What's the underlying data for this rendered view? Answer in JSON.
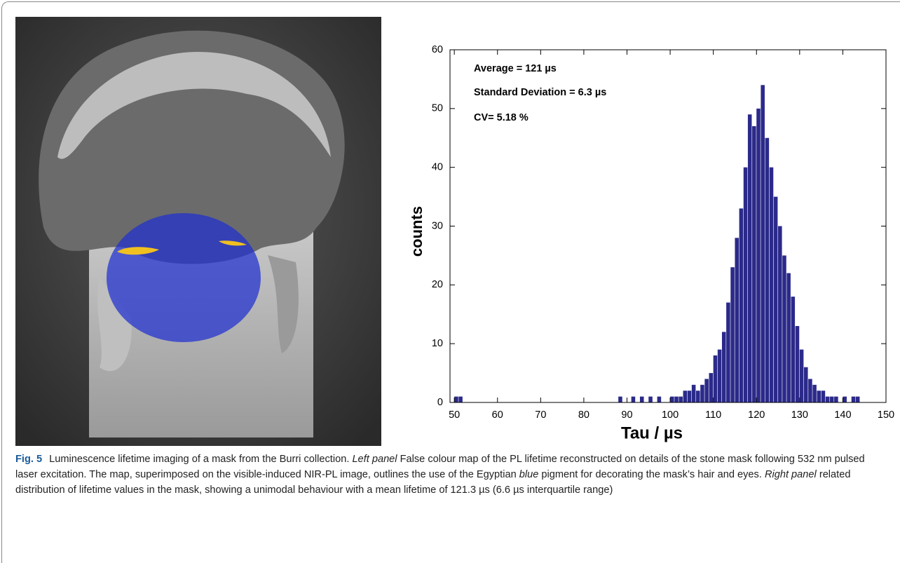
{
  "chart_data": {
    "type": "histogram",
    "annotations": [
      "Average = 121 µs",
      "Standard Deviation  = 6.3 µs",
      "CV= 5.18 %"
    ],
    "x_label": "Tau / µs",
    "y_label": "counts",
    "color": "#2b2a8a",
    "bins": [
      50,
      51,
      52,
      53,
      54,
      55,
      56,
      57,
      58,
      59,
      60,
      61,
      62,
      63,
      64,
      65,
      66,
      67,
      68,
      69,
      70,
      71,
      72,
      73,
      74,
      75,
      76,
      77,
      78,
      79,
      80,
      81,
      82,
      83,
      84,
      85,
      86,
      87,
      88,
      89,
      90,
      91,
      92,
      93,
      94,
      95,
      96,
      97,
      98,
      99,
      100,
      101,
      102,
      103,
      104,
      105,
      106,
      107,
      108,
      109,
      110,
      111,
      112,
      113,
      114,
      115,
      116,
      117,
      118,
      119,
      120,
      121,
      122,
      123,
      124,
      125,
      126,
      127,
      128,
      129,
      130,
      131,
      132,
      133,
      134,
      135,
      136,
      137,
      138,
      139,
      140,
      141,
      142,
      143,
      144
    ],
    "counts": [
      1,
      1,
      0,
      0,
      0,
      0,
      0,
      0,
      0,
      0,
      0,
      0,
      0,
      0,
      0,
      0,
      0,
      0,
      0,
      0,
      0,
      0,
      0,
      0,
      0,
      0,
      0,
      0,
      0,
      0,
      0,
      0,
      0,
      0,
      0,
      0,
      0,
      0,
      1,
      0,
      0,
      1,
      0,
      1,
      0,
      1,
      0,
      1,
      0,
      0,
      1,
      1,
      1,
      2,
      2,
      3,
      2,
      3,
      4,
      5,
      8,
      9,
      12,
      17,
      23,
      28,
      33,
      40,
      49,
      47,
      50,
      54,
      45,
      40,
      35,
      30,
      25,
      22,
      18,
      13,
      9,
      6,
      4,
      3,
      2,
      2,
      1,
      1,
      1,
      0,
      1,
      0,
      1,
      1
    ],
    "xlim": [
      49,
      150
    ],
    "xticks": [
      50,
      60,
      70,
      80,
      90,
      100,
      110,
      120,
      130,
      140,
      150
    ],
    "ylim": [
      0,
      60
    ],
    "yticks": [
      0,
      10,
      20,
      30,
      40,
      50,
      60
    ]
  },
  "caption": {
    "label": "Fig. 5",
    "parts": [
      {
        "text": "Luminescence lifetime imaging of a mask from the Burri collection. "
      },
      {
        "text": "Left panel",
        "italic": true
      },
      {
        "text": " False colour map of the PL lifetime reconstructed on details of the stone mask following 532 nm pulsed laser excitation. The map, superimposed on the visible-induced NIR-PL image, outlines the use of the Egyptian "
      },
      {
        "text": "blue",
        "italic": true
      },
      {
        "text": " pigment for decorating the mask’s hair and eyes. "
      },
      {
        "text": "Right panel",
        "italic": true
      },
      {
        "text": " related distribution of lifetime values in the mask, showing a unimodal behaviour with a mean lifetime of 121.3 µs (6.6 µs interquartile range)"
      }
    ]
  }
}
